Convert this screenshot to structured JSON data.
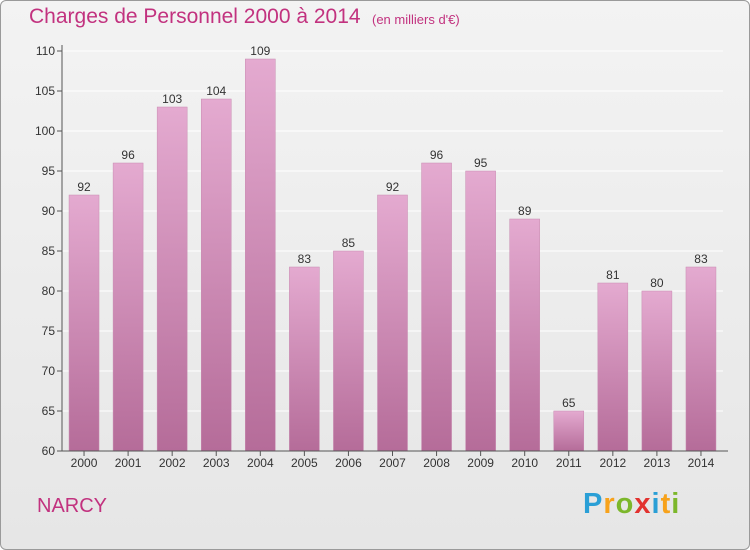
{
  "header": {
    "title": "Charges de Personnel 2000 à 2014",
    "subtitle": "(en milliers d'€)"
  },
  "footer": {
    "place": "NARCY",
    "logo_letters": [
      "P",
      "r",
      "o",
      "x",
      "i",
      "t",
      "i"
    ],
    "logo_colors": [
      "#2a9fd6",
      "#f7a21b",
      "#7cb72b",
      "#e2322f",
      "#2a9fd6",
      "#f7a21b",
      "#7cb72b"
    ]
  },
  "colors": {
    "bar_top": "#e4aad0",
    "bar_bottom": "#b56c99",
    "title": "#c2327f",
    "grid": "#ffffff",
    "text": "#333333"
  },
  "chart_data": {
    "type": "bar",
    "categories": [
      "2000",
      "2001",
      "2002",
      "2003",
      "2004",
      "2005",
      "2006",
      "2007",
      "2008",
      "2009",
      "2010",
      "2011",
      "2012",
      "2013",
      "2014"
    ],
    "values": [
      92,
      96,
      103,
      104,
      109,
      83,
      85,
      92,
      96,
      95,
      89,
      65,
      81,
      80,
      83
    ],
    "title": "Charges de Personnel 2000 à 2014",
    "xlabel": "",
    "ylabel": "",
    "ylim": [
      60,
      110
    ],
    "yticks": [
      60,
      65,
      70,
      75,
      80,
      85,
      90,
      95,
      100,
      105,
      110
    ],
    "grid": true,
    "data_labels": true
  }
}
